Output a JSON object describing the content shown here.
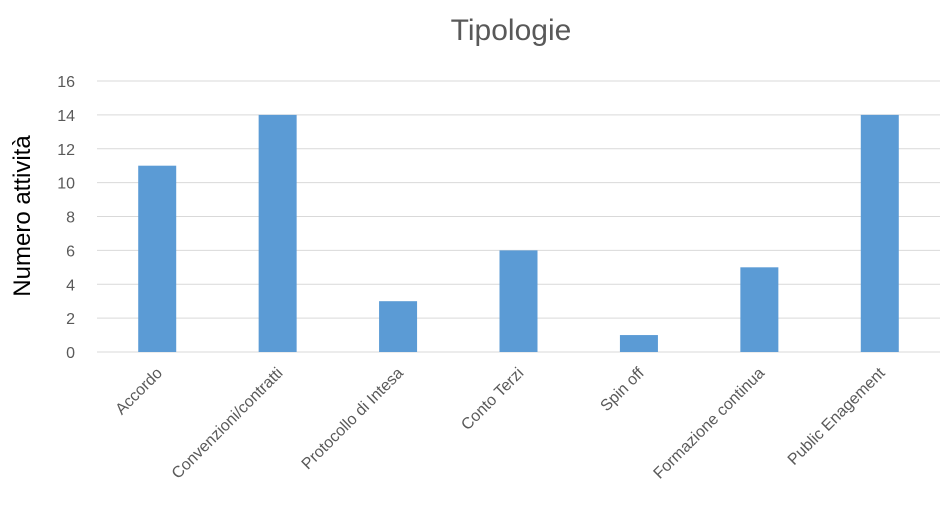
{
  "chart_data": {
    "type": "bar",
    "title": "Tipologie",
    "xlabel": "",
    "ylabel": "Numero attività",
    "categories": [
      "Accordo",
      "Convenzioni/contratti",
      "Protocollo di Intesa",
      "Conto Terzi",
      "Spin off",
      "Formazione continua",
      "Public Enagement"
    ],
    "values": [
      11,
      14,
      3,
      6,
      1,
      5,
      14
    ],
    "ylim": [
      0,
      16
    ],
    "yticks": [
      0,
      2,
      4,
      6,
      8,
      10,
      12,
      14,
      16
    ],
    "grid": true,
    "legend": "none",
    "bar_color": "#5b9bd5"
  }
}
